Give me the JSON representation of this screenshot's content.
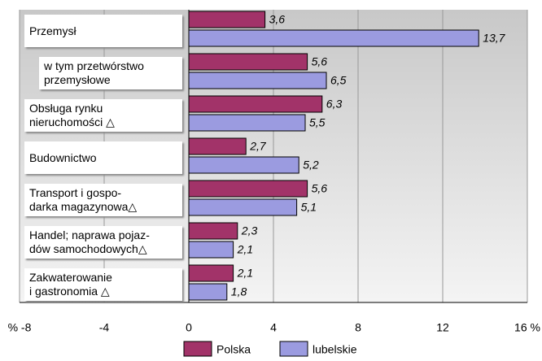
{
  "chart_data": {
    "type": "barh",
    "categories": [
      "Przemysł",
      "w tym przetwórstwo\nprzemysłowe",
      "Obsługa rynku\nnieruchomości △",
      "Budownictwo",
      "Transport i gospo-\ndarka magazynowa△",
      "Handel; naprawa pojaz-\ndów samochodowych△",
      "Zakwaterowanie\ni gastronomia △"
    ],
    "series": [
      {
        "name": "Polska",
        "color": "#a23369",
        "values": [
          3.6,
          5.6,
          6.3,
          2.7,
          5.6,
          2.3,
          2.1
        ],
        "value_labels": [
          "3,6",
          "5,6",
          "6,3",
          "2,7",
          "5,6",
          "2,3",
          "2,1"
        ]
      },
      {
        "name": "lubelskie",
        "color": "#9b9be0",
        "values": [
          13.7,
          6.5,
          5.5,
          5.2,
          5.1,
          2.1,
          1.8
        ],
        "value_labels": [
          "13,7",
          "6,5",
          "5,5",
          "5,2",
          "5,1",
          "2,1",
          "1,8"
        ]
      }
    ],
    "xlim": [
      -8,
      16
    ],
    "xticks": [
      {
        "value": -8,
        "label": "% -8"
      },
      -4,
      0,
      4,
      8,
      12,
      {
        "value": 16,
        "label": "16 %"
      }
    ],
    "grid": true
  }
}
